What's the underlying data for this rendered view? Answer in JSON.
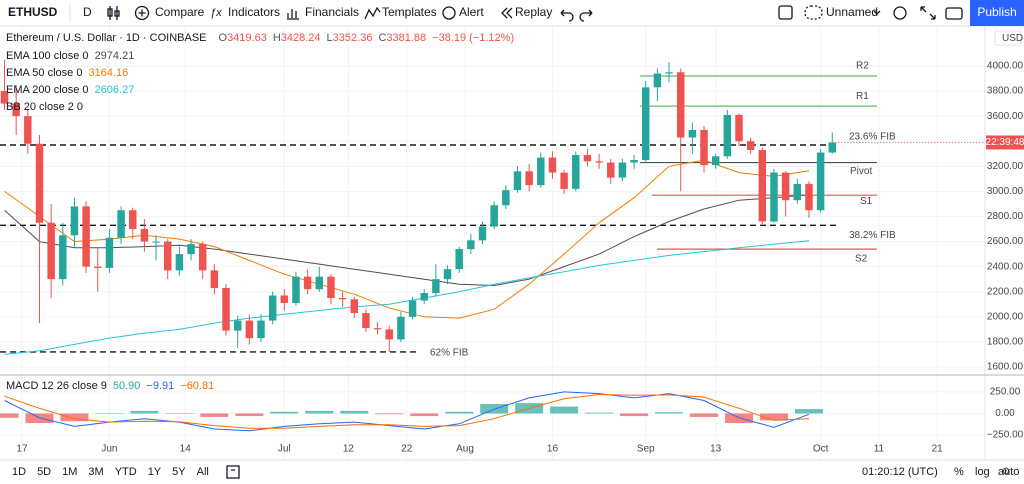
{
  "toolbar": {
    "symbol": "ETHUSD",
    "interval": "D",
    "buttons": [
      "Compare",
      "Indicators",
      "Financials",
      "Templates",
      "Alert",
      "Replay"
    ],
    "layout_name": "Unnamed",
    "publish": "Publish"
  },
  "chart_data": [
    {
      "type": "candlestick",
      "title": "Ethereum / U.S. Dollar · 1D · COINBASE",
      "ohlc": [
        [
          "O",
          "3419.63"
        ],
        [
          "H",
          "3428.24"
        ],
        [
          "L",
          "3352.36"
        ],
        [
          "C",
          "3381.88"
        ]
      ],
      "change": "−38.19 (−1.12%)",
      "up_color": "#26a69a",
      "down_color": "#ef5350",
      "candles": [
        [
          3800,
          4050,
          3650,
          3700
        ],
        [
          3700,
          3850,
          3450,
          3600
        ],
        [
          3600,
          3650,
          3300,
          3380
        ],
        [
          3380,
          3450,
          1950,
          2750
        ],
        [
          2750,
          2900,
          2150,
          2300
        ],
        [
          2300,
          2750,
          2250,
          2650
        ],
        [
          2650,
          2950,
          2550,
          2880
        ],
        [
          2880,
          2920,
          2350,
          2400
        ],
        [
          2400,
          2550,
          2200,
          2390
        ],
        [
          2390,
          2700,
          2350,
          2630
        ],
        [
          2630,
          2880,
          2580,
          2850
        ],
        [
          2850,
          2870,
          2620,
          2700
        ],
        [
          2700,
          2780,
          2520,
          2600
        ],
        [
          2600,
          2650,
          2450,
          2600
        ],
        [
          2600,
          2620,
          2300,
          2370
        ],
        [
          2370,
          2560,
          2330,
          2500
        ],
        [
          2500,
          2620,
          2450,
          2580
        ],
        [
          2580,
          2600,
          2300,
          2370
        ],
        [
          2370,
          2420,
          2180,
          2230
        ],
        [
          2230,
          2260,
          1850,
          1890
        ],
        [
          1890,
          2010,
          1750,
          1970
        ],
        [
          1970,
          2020,
          1780,
          1830
        ],
        [
          1830,
          2020,
          1800,
          1970
        ],
        [
          1970,
          2200,
          1940,
          2170
        ],
        [
          2170,
          2220,
          2050,
          2110
        ],
        [
          2110,
          2360,
          2090,
          2320
        ],
        [
          2320,
          2380,
          2180,
          2220
        ],
        [
          2220,
          2400,
          2200,
          2320
        ],
        [
          2320,
          2340,
          2100,
          2150
        ],
        [
          2150,
          2200,
          2080,
          2140
        ],
        [
          2140,
          2160,
          1990,
          2030
        ],
        [
          2030,
          2060,
          1880,
          1910
        ],
        [
          1910,
          1960,
          1860,
          1900
        ],
        [
          1900,
          1930,
          1720,
          1820
        ],
        [
          1820,
          2040,
          1800,
          2000
        ],
        [
          2000,
          2160,
          1980,
          2130
        ],
        [
          2130,
          2220,
          2100,
          2190
        ],
        [
          2190,
          2420,
          2160,
          2300
        ],
        [
          2300,
          2410,
          2260,
          2380
        ],
        [
          2380,
          2560,
          2350,
          2540
        ],
        [
          2540,
          2660,
          2500,
          2610
        ],
        [
          2610,
          2760,
          2580,
          2720
        ],
        [
          2720,
          2920,
          2700,
          2890
        ],
        [
          2890,
          3050,
          2860,
          3010
        ],
        [
          3010,
          3200,
          2990,
          3160
        ],
        [
          3160,
          3220,
          3000,
          3050
        ],
        [
          3050,
          3310,
          3030,
          3270
        ],
        [
          3270,
          3320,
          3100,
          3150
        ],
        [
          3150,
          3170,
          2980,
          3020
        ],
        [
          3020,
          3320,
          3000,
          3290
        ],
        [
          3290,
          3340,
          3200,
          3240
        ],
        [
          3240,
          3300,
          3180,
          3230
        ],
        [
          3230,
          3260,
          3060,
          3110
        ],
        [
          3110,
          3260,
          3080,
          3230
        ],
        [
          3230,
          3290,
          3180,
          3250
        ],
        [
          3250,
          3880,
          3230,
          3830
        ],
        [
          3830,
          3980,
          3720,
          3940
        ],
        [
          3940,
          4030,
          3870,
          3950
        ],
        [
          3950,
          3980,
          3000,
          3430
        ],
        [
          3430,
          3550,
          3300,
          3490
        ],
        [
          3490,
          3520,
          3150,
          3210
        ],
        [
          3210,
          3300,
          3180,
          3280
        ],
        [
          3280,
          3650,
          3260,
          3610
        ],
        [
          3610,
          3620,
          3360,
          3400
        ],
        [
          3400,
          3430,
          3300,
          3330
        ],
        [
          3330,
          3350,
          2740,
          2760
        ],
        [
          2760,
          3180,
          2750,
          3150
        ],
        [
          3150,
          3160,
          2800,
          2930
        ],
        [
          2930,
          3100,
          2900,
          3060
        ],
        [
          3060,
          3080,
          2790,
          2850
        ],
        [
          2850,
          3340,
          2830,
          3310
        ],
        [
          3310,
          3470,
          3300,
          3390
        ]
      ],
      "series": [
        {
          "name": "EMA 100 close 0",
          "legend_value": "2974.21",
          "color": "#4a4e57",
          "values": [
            2850,
            2600,
            2550,
            2550,
            2560,
            2570,
            2540,
            2500,
            2460,
            2420,
            2380,
            2340,
            2300,
            2260,
            2250,
            2300,
            2400,
            2500,
            2640,
            2760,
            2860,
            2930,
            2950,
            2974
          ]
        },
        {
          "name": "EMA 50 close 0",
          "legend_value": "3164.16",
          "color": "#f57c00",
          "values": [
            3000,
            2800,
            2600,
            2620,
            2650,
            2620,
            2560,
            2450,
            2340,
            2260,
            2180,
            2070,
            2000,
            1990,
            2060,
            2260,
            2500,
            2750,
            2950,
            3200,
            3250,
            3150,
            3120,
            3164
          ]
        },
        {
          "name": "EMA 200 close 0",
          "legend_value": "2606.27",
          "color": "#26c6da",
          "values": [
            1700,
            1730,
            1780,
            1830,
            1870,
            1900,
            1950,
            1990,
            2020,
            2050,
            2080,
            2100,
            2150,
            2200,
            2260,
            2310,
            2360,
            2410,
            2450,
            2490,
            2520,
            2550,
            2580,
            2606
          ]
        }
      ],
      "inactive_indicator": "BB 20 close 2 0",
      "levels": [
        {
          "label": "R2",
          "value": 3920,
          "color": "#66bb6a",
          "style": "solid"
        },
        {
          "label": "R1",
          "value": 3680,
          "color": "#66bb6a",
          "style": "solid"
        },
        {
          "label": "23.6% FIB",
          "value": 3370,
          "color": "#131722",
          "style": "dashed"
        },
        {
          "label": "Pivot",
          "value": 3230,
          "color": "#4a4e57",
          "style": "solid"
        },
        {
          "label": "S1",
          "value": 2970,
          "color": "#ef5350",
          "style": "solid"
        },
        {
          "label": "38.2% FIB",
          "value": 2730,
          "color": "#131722",
          "style": "dashed"
        },
        {
          "label": "S2",
          "value": 2540,
          "color": "#ef5350",
          "style": "solid"
        },
        {
          "label": "62% FIB",
          "value": 1720,
          "color": "#131722",
          "style": "dashed"
        }
      ],
      "currency": "USD",
      "countdown": "22:39:48",
      "ylim": [
        1544,
        4287
      ],
      "yticks": [
        {
          "value": 4000,
          "label": "4000.00"
        },
        {
          "value": 3800,
          "label": "3800.00"
        },
        {
          "value": 3600,
          "label": "3600.00"
        },
        {
          "value": 3400,
          "label": "3400.00"
        },
        {
          "value": 3200,
          "label": "3200.00"
        },
        {
          "value": 3000,
          "label": "3000.00"
        },
        {
          "value": 2800,
          "label": "2800.00"
        },
        {
          "value": 2600,
          "label": "2600.00"
        },
        {
          "value": 2400,
          "label": "2400.00"
        },
        {
          "value": 2200,
          "label": "2200.00"
        },
        {
          "value": 2000,
          "label": "2000.00"
        },
        {
          "value": 1800,
          "label": "1800.00"
        },
        {
          "value": 1600,
          "label": "1600.00"
        }
      ],
      "xlim": [
        -0.386,
        84.1
      ],
      "xticks": [
        {
          "value": 1.5,
          "label": "17"
        },
        {
          "value": 9,
          "label": "Jun"
        },
        {
          "value": 15.5,
          "label": "14"
        },
        {
          "value": 24,
          "label": "Jul"
        },
        {
          "value": 29.5,
          "label": "12"
        },
        {
          "value": 34.5,
          "label": "22"
        },
        {
          "value": 39.5,
          "label": "Aug"
        },
        {
          "value": 47,
          "label": "16"
        },
        {
          "value": 55,
          "label": "Sep"
        },
        {
          "value": 61,
          "label": "13"
        },
        {
          "value": 70,
          "label": "Oct"
        },
        {
          "value": 75,
          "label": "11"
        },
        {
          "value": 80,
          "label": "21"
        }
      ],
      "grid": true
    },
    {
      "type": "macd",
      "title": "MACD 12 26 close 9",
      "value_labels": [
        "50.90",
        "−9.91",
        "−60.81"
      ],
      "up_color": "#26a69a",
      "down_color": "#ef5350",
      "series": [
        {
          "kind": "histogram",
          "color": "#26a69a",
          "values": [
            -50,
            -110,
            -90,
            0,
            30,
            -5,
            -40,
            -30,
            20,
            30,
            30,
            -10,
            -30,
            20,
            110,
            120,
            80,
            10,
            -30,
            15,
            -40,
            -110,
            -80,
            50.9
          ]
        },
        {
          "kind": "macd",
          "color": "#2962ff",
          "values": [
            150,
            -50,
            -150,
            -100,
            -60,
            -100,
            -180,
            -200,
            -150,
            -120,
            -100,
            -140,
            -180,
            -120,
            50,
            180,
            250,
            230,
            180,
            230,
            150,
            -50,
            -160,
            -9.91
          ]
        },
        {
          "kind": "signal",
          "color": "#ff6d00",
          "values": [
            200,
            60,
            -60,
            -100,
            -90,
            -95,
            -140,
            -170,
            -170,
            -150,
            -130,
            -130,
            -150,
            -140,
            -60,
            60,
            170,
            220,
            210,
            215,
            190,
            60,
            -80,
            -60.81
          ]
        }
      ],
      "ylim": [
        -307,
        434
      ],
      "yticks": [
        {
          "value": 250,
          "label": "250.00"
        },
        {
          "value": 0,
          "label": "0.00"
        },
        {
          "value": -250,
          "label": "−250.00"
        }
      ]
    }
  ],
  "bottom_bar": {
    "ranges": [
      "1D",
      "5D",
      "1M",
      "3M",
      "YTD",
      "1Y",
      "5Y",
      "All"
    ],
    "clock": "01:20:12 (UTC)",
    "options": [
      "%",
      "log",
      "auto"
    ]
  }
}
